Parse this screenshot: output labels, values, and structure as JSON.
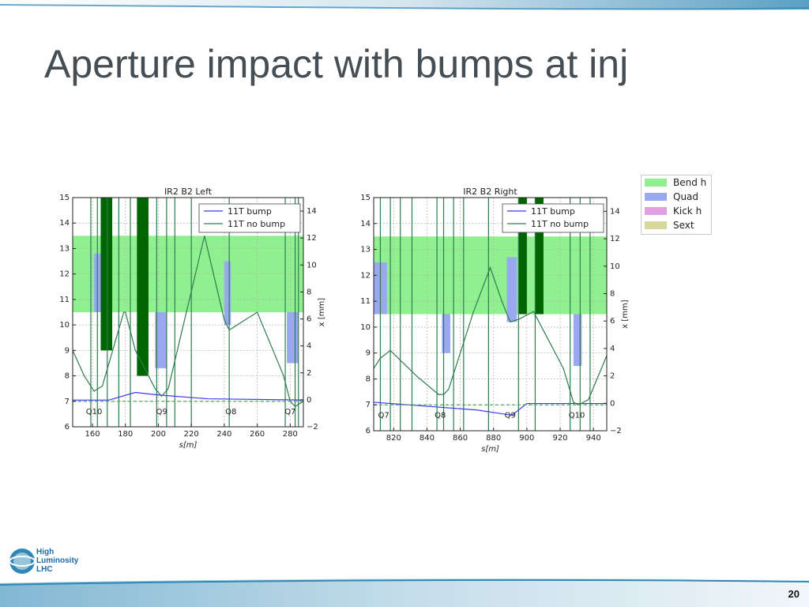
{
  "slide": {
    "title": "Aperture impact with bumps at inj",
    "page_number": "20",
    "logo_lines": [
      "High",
      "Luminosity",
      "LHC"
    ]
  },
  "colors": {
    "bend_h": "#90f090",
    "quad": "#9aa8f0",
    "kick_h": "#e0a0e0",
    "sext": "#d8d89a",
    "bump": "#3b3bf0",
    "no_bump": "#2e7d4f",
    "dark_green": "#006400",
    "title_color": "#454d55"
  },
  "legend": {
    "items": [
      {
        "label": "Bend h",
        "color": "#90f090"
      },
      {
        "label": "Quad",
        "color": "#9aa8f0"
      },
      {
        "label": "Kick h",
        "color": "#e0a0e0"
      },
      {
        "label": "Sext",
        "color": "#d8d89a"
      }
    ]
  },
  "chart_data": [
    {
      "type": "line",
      "title": "IR2 B2 Left",
      "xlabel": "s[m]",
      "ylabel_right": "x [mm]",
      "xlim": [
        148,
        288
      ],
      "ylim_left": [
        6,
        15
      ],
      "ylim_right": [
        -2,
        15
      ],
      "x_ticks": [
        160,
        180,
        200,
        220,
        240,
        260,
        280
      ],
      "y_ticks_left": [
        6,
        7,
        8,
        9,
        10,
        11,
        12,
        13,
        14,
        15
      ],
      "y_ticks_right": [
        -2,
        0,
        2,
        4,
        6,
        8,
        10,
        12,
        14
      ],
      "grid": true,
      "legend_placement": "top-right",
      "quad_labels": [
        {
          "text": "Q10",
          "s": 161
        },
        {
          "text": "Q9",
          "s": 202
        },
        {
          "text": "Q8",
          "s": 244
        },
        {
          "text": "Q7",
          "s": 280
        }
      ],
      "bend_bands": [
        [
          148,
          288,
          10.5,
          13.5
        ]
      ],
      "quad_bands": [
        [
          161,
          166,
          10.5,
          12.8
        ],
        [
          198,
          205,
          8.3,
          10.5
        ],
        [
          240,
          244,
          10,
          12.5
        ],
        [
          278,
          285,
          8.5,
          10.5
        ]
      ],
      "dark_blocks": [
        [
          165,
          172,
          9,
          15
        ],
        [
          187,
          194,
          8,
          15
        ]
      ],
      "vertical_lines": [
        159,
        163,
        169,
        176,
        183,
        199,
        205,
        210,
        220,
        243,
        277,
        283,
        285
      ],
      "series": [
        {
          "name": "11T bump",
          "x": [
            148,
            170,
            186,
            200,
            230,
            288
          ],
          "y": [
            7.05,
            7.05,
            7.35,
            7.25,
            7.1,
            7.05
          ]
        },
        {
          "name": "11T no bump",
          "x": [
            148,
            155,
            161,
            166,
            179,
            180,
            186,
            198,
            202,
            206,
            228,
            240,
            243,
            260,
            276,
            280,
            283,
            288
          ],
          "y": [
            9,
            8,
            7.4,
            7.6,
            10.5,
            10.5,
            9,
            7.5,
            7.2,
            7.5,
            13.5,
            10.2,
            9.8,
            10.5,
            8,
            7,
            6.8,
            7
          ]
        },
        {
          "name": "",
          "x": [
            148,
            288
          ],
          "y": [
            7,
            7
          ]
        }
      ]
    },
    {
      "type": "line",
      "title": "IR2 B2 Right",
      "xlabel": "s[m]",
      "ylabel_right": "x [mm]",
      "xlim": [
        808,
        948
      ],
      "ylim_left": [
        6,
        15
      ],
      "ylim_right": [
        -2,
        15
      ],
      "x_ticks": [
        820,
        840,
        860,
        880,
        900,
        920,
        940
      ],
      "y_ticks_left": [
        6,
        7,
        8,
        9,
        10,
        11,
        12,
        13,
        14,
        15
      ],
      "y_ticks_right": [
        -2,
        0,
        2,
        4,
        6,
        8,
        10,
        12,
        14
      ],
      "grid": true,
      "legend_placement": "top-right",
      "quad_labels": [
        {
          "text": "Q7",
          "s": 814
        },
        {
          "text": "Q8",
          "s": 848
        },
        {
          "text": "Q9",
          "s": 890
        },
        {
          "text": "Q10",
          "s": 930
        }
      ],
      "bend_bands": [
        [
          808,
          948,
          10.5,
          13.5
        ]
      ],
      "quad_bands": [
        [
          808,
          816,
          10.5,
          12.5
        ],
        [
          849,
          854,
          9,
          10.5
        ],
        [
          888,
          894,
          10.2,
          12.7
        ],
        [
          928,
          933,
          8.5,
          10.5
        ]
      ],
      "dark_blocks": [
        [
          895,
          900,
          10.5,
          15
        ],
        [
          905,
          910,
          10.5,
          15
        ]
      ],
      "vertical_lines": [
        812,
        818,
        824,
        831,
        846,
        850,
        856,
        862,
        877,
        895,
        905,
        926,
        932,
        938
      ],
      "series": [
        {
          "name": "11T bump",
          "x": [
            808,
            870,
            891,
            900,
            948
          ],
          "y": [
            7.1,
            6.8,
            6.6,
            7.05,
            7.05
          ]
        },
        {
          "name": "11T no bump",
          "x": [
            808,
            812,
            818,
            834,
            847,
            850,
            853,
            868,
            878,
            885,
            890,
            895,
            904,
            922,
            928,
            931,
            937,
            948
          ],
          "y": [
            8.4,
            8.8,
            9.1,
            8.1,
            7.4,
            7.4,
            7.6,
            10.6,
            12.3,
            11,
            10.2,
            10.3,
            10.6,
            8.4,
            7.1,
            7,
            7.2,
            8.9
          ]
        },
        {
          "name": "",
          "x": [
            808,
            948
          ],
          "y": [
            7,
            7
          ]
        }
      ]
    }
  ]
}
